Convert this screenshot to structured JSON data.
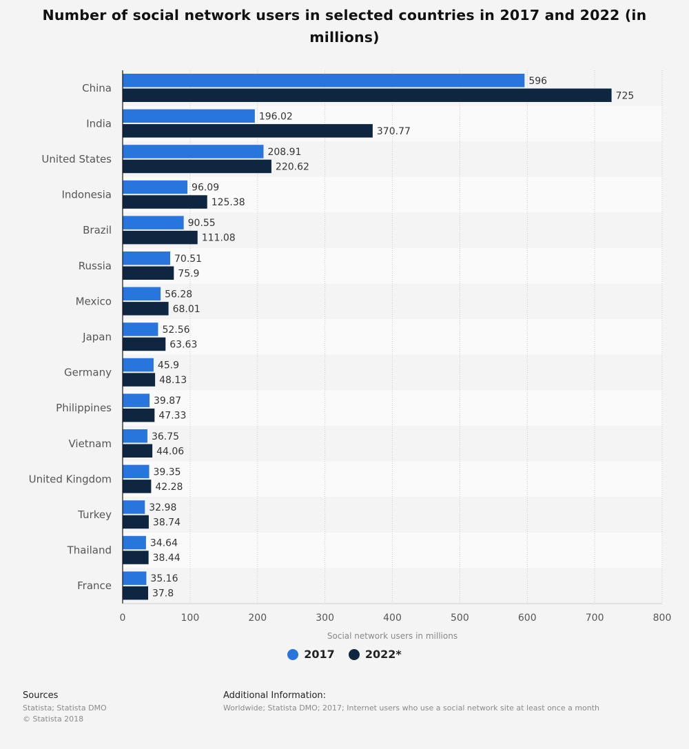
{
  "title": "Number of social network users in selected countries in 2017 and 2022 (in millions)",
  "legend": [
    {
      "label": "2017",
      "color": "#2876dd"
    },
    {
      "label": "2022*",
      "color": "#0f2640"
    }
  ],
  "footer": {
    "sources_heading": "Sources",
    "sources_line1": "Statista; Statista DMO",
    "sources_line2": "© Statista 2018",
    "info_heading": "Additional Information:",
    "info_text": "Worldwide; Statista DMO; 2017; Internet users who use a social network site at least once a month"
  },
  "chart_data": {
    "type": "bar",
    "orientation": "horizontal",
    "categories": [
      "China",
      "India",
      "United States",
      "Indonesia",
      "Brazil",
      "Russia",
      "Mexico",
      "Japan",
      "Germany",
      "Philippines",
      "Vietnam",
      "United Kingdom",
      "Turkey",
      "Thailand",
      "France"
    ],
    "series": [
      {
        "name": "2017",
        "color": "#2876dd",
        "values": [
          596,
          196.02,
          208.91,
          96.09,
          90.55,
          70.51,
          56.28,
          52.56,
          45.9,
          39.87,
          36.75,
          39.35,
          32.98,
          34.64,
          35.16
        ]
      },
      {
        "name": "2022*",
        "color": "#0f2640",
        "values": [
          725,
          370.77,
          220.62,
          125.38,
          111.08,
          75.9,
          68.01,
          63.63,
          48.13,
          47.33,
          44.06,
          42.28,
          38.74,
          38.44,
          37.8
        ]
      }
    ],
    "value_labels": [
      [
        "596",
        "196.02",
        "208.91",
        "96.09",
        "90.55",
        "70.51",
        "56.28",
        "52.56",
        "45.9",
        "39.87",
        "36.75",
        "39.35",
        "32.98",
        "34.64",
        "35.16"
      ],
      [
        "725",
        "370.77",
        "220.62",
        "125.38",
        "111.08",
        "75.9",
        "68.01",
        "63.63",
        "48.13",
        "47.33",
        "44.06",
        "42.28",
        "38.74",
        "38.44",
        "37.8"
      ]
    ],
    "xlabel": "Social network users in millions",
    "xlim": [
      0,
      800
    ],
    "xticks": [
      0,
      100,
      200,
      300,
      400,
      500,
      600,
      700,
      800
    ],
    "grid": true,
    "legend_position": "bottom-center"
  }
}
